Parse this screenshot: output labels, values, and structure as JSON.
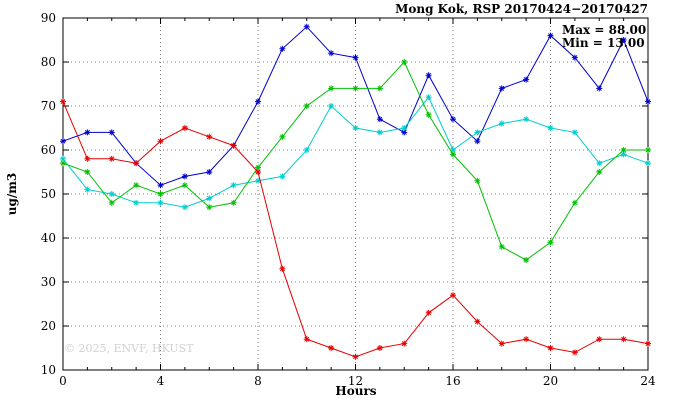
{
  "header": {
    "title": "Mong Kok, RSP 20170424−20170427"
  },
  "annotations": {
    "max": "Max = 88.00",
    "min": "Min = 13.00",
    "watermark": "© 2025, ENVF, HKUST"
  },
  "axes": {
    "x_label": "Hours",
    "y_label": "ug/m3"
  },
  "chart_data": {
    "type": "line",
    "title": "Mong Kok, RSP 20170424-20170427",
    "xlabel": "Hours",
    "ylabel": "ug/m3",
    "xlim": [
      0,
      24
    ],
    "ylim": [
      10,
      90
    ],
    "xticks": [
      0,
      4,
      8,
      12,
      16,
      20,
      24
    ],
    "yticks": [
      10,
      20,
      30,
      40,
      50,
      60,
      70,
      80,
      90
    ],
    "grid": "dotted",
    "legend_position": "none",
    "marker": "asterisk",
    "x": [
      0,
      1,
      2,
      3,
      4,
      5,
      6,
      7,
      8,
      9,
      10,
      11,
      12,
      13,
      14,
      15,
      16,
      17,
      18,
      19,
      20,
      21,
      22,
      23,
      24
    ],
    "series": [
      {
        "name": "series-blue",
        "color": "#0000cd",
        "values": [
          62,
          64,
          64,
          57,
          52,
          54,
          55,
          61,
          71,
          83,
          88,
          82,
          81,
          67,
          64,
          77,
          67,
          62,
          74,
          76,
          86,
          81,
          74,
          85,
          71
        ]
      },
      {
        "name": "series-cyan",
        "color": "#00cdcd",
        "values": [
          58,
          51,
          50,
          48,
          48,
          47,
          49,
          52,
          53,
          54,
          60,
          70,
          65,
          64,
          65,
          72,
          60,
          64,
          66,
          67,
          65,
          64,
          57,
          59,
          57
        ]
      },
      {
        "name": "series-green",
        "color": "#00c000",
        "values": [
          57,
          55,
          48,
          52,
          50,
          52,
          47,
          48,
          56,
          63,
          70,
          74,
          74,
          74,
          80,
          68,
          59,
          53,
          38,
          35,
          39,
          48,
          55,
          60,
          60
        ]
      },
      {
        "name": "series-red",
        "color": "#e60000",
        "values": [
          71,
          58,
          58,
          57,
          62,
          65,
          63,
          61,
          55,
          33,
          17,
          15,
          13,
          15,
          16,
          23,
          27,
          21,
          16,
          17,
          15,
          14,
          17,
          17,
          16
        ]
      }
    ],
    "max_value": 88.0,
    "min_value": 13.0
  }
}
